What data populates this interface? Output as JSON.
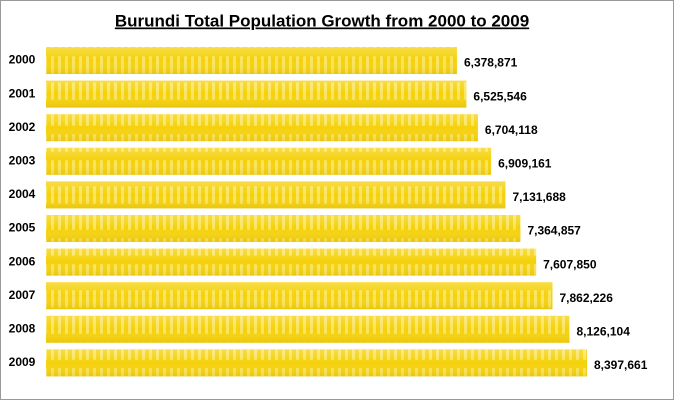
{
  "chart_data": {
    "type": "bar",
    "orientation": "horizontal",
    "title": "Burundi  Total Population Growth from 2000 to 2009",
    "categories": [
      "2000",
      "2001",
      "2002",
      "2003",
      "2004",
      "2005",
      "2006",
      "2007",
      "2008",
      "2009"
    ],
    "values": [
      6378871,
      6525546,
      6704118,
      6909161,
      7131688,
      7364857,
      7607850,
      7862226,
      8126104,
      8397661
    ],
    "value_labels": [
      "6,378,871",
      "6,525,546",
      "6,704,118",
      "6,909,161",
      "7,131,688",
      "7,364,857",
      "7,607,850",
      "7,862,226",
      "8,126,104",
      "8,397,661"
    ],
    "color": "#f5d10a"
  }
}
